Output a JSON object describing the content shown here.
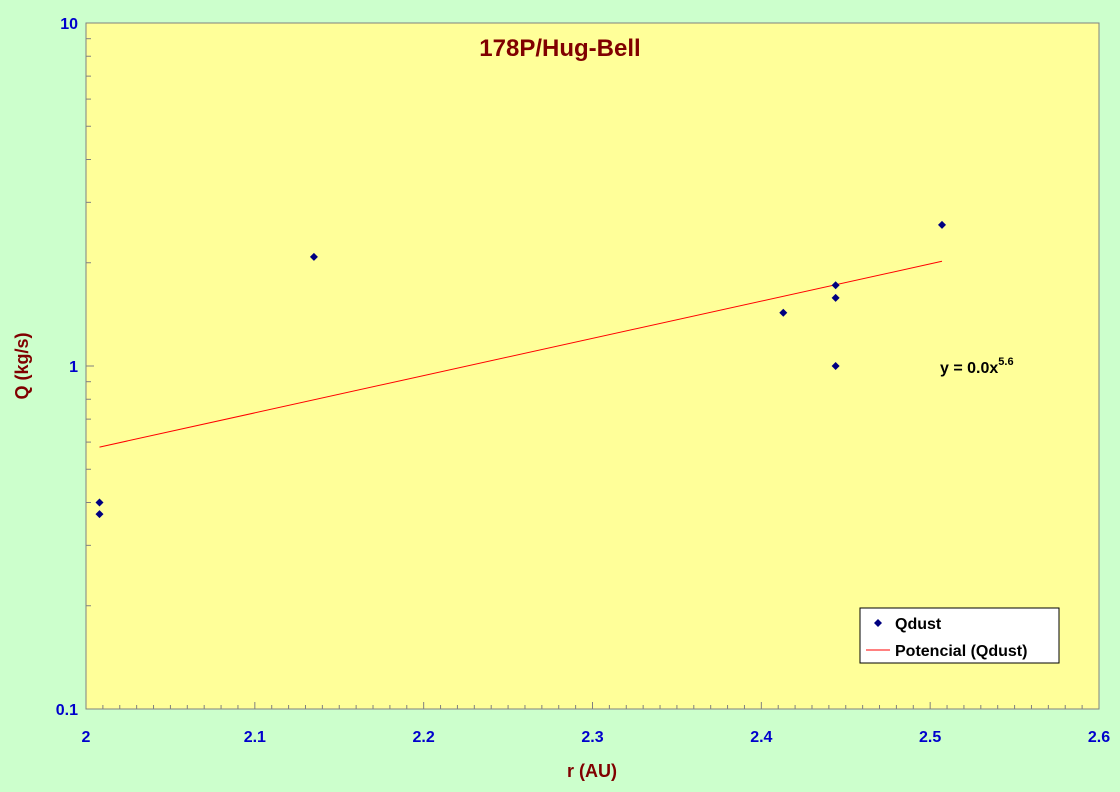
{
  "chart_data": {
    "type": "scatter",
    "title": "178P/Hug-Bell",
    "xlabel": "r (AU)",
    "ylabel": "Q (kg/s)",
    "xlim": [
      2,
      2.6
    ],
    "ylim": [
      0.1,
      10
    ],
    "y_scale": "log",
    "x_ticks": [
      "2",
      "2.1",
      "2.2",
      "2.3",
      "2.4",
      "2.5",
      "2.6"
    ],
    "y_ticks": [
      "0.1",
      "1",
      "10"
    ],
    "grid": false,
    "legend_position": "bottom-right",
    "series": [
      {
        "name": "Qdust",
        "kind": "scatter",
        "marker": "diamond",
        "color": "#000080",
        "points": [
          {
            "x": 2.008,
            "y": 0.4
          },
          {
            "x": 2.008,
            "y": 0.37
          },
          {
            "x": 2.135,
            "y": 2.08
          },
          {
            "x": 2.413,
            "y": 1.43
          },
          {
            "x": 2.444,
            "y": 1.72
          },
          {
            "x": 2.444,
            "y": 1.58
          },
          {
            "x": 2.444,
            "y": 1.0
          },
          {
            "x": 2.507,
            "y": 2.58
          }
        ]
      },
      {
        "name": "Potencial (Qdust)",
        "kind": "line",
        "color": "#ff0000",
        "points": [
          {
            "x": 2.008,
            "y": 0.58
          },
          {
            "x": 2.507,
            "y": 2.02
          }
        ]
      }
    ],
    "annotation": {
      "base": "y = 0.0x",
      "exponent": "5.6"
    }
  }
}
